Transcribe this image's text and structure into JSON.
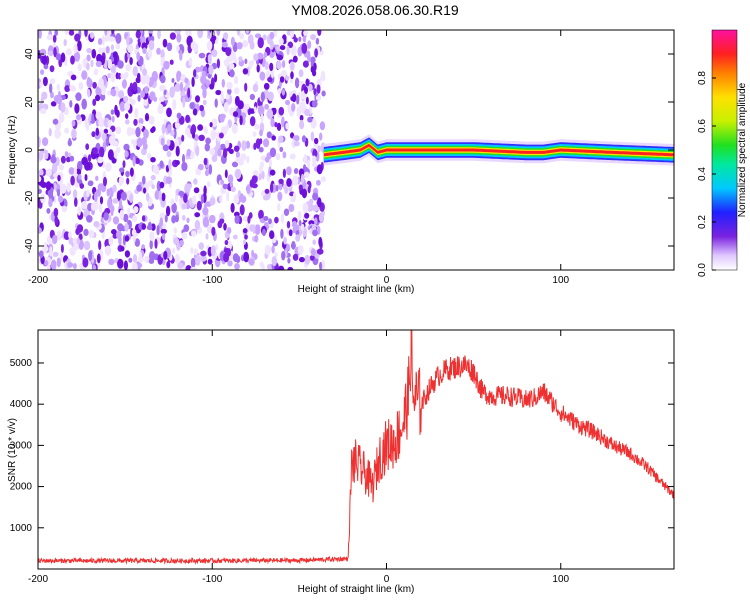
{
  "title": "YM08.2026.058.06.30.R19",
  "colors": {
    "noise": "#7a22e0",
    "snr_line": "#ee3030",
    "frame": "#000000"
  },
  "chart_data": [
    {
      "type": "heatmap",
      "xlabel": "Height of straight line (km)",
      "ylabel": "Frequency (Hz)",
      "xlim": [
        -200,
        165
      ],
      "ylim": [
        -50,
        50
      ],
      "x_ticks": [
        -200,
        -100,
        0,
        100
      ],
      "y_ticks": [
        -40,
        -20,
        0,
        20,
        40
      ],
      "colorbar": {
        "label": "Normalized spectral amplitude",
        "range": [
          0,
          1
        ],
        "ticks": [
          "0.0",
          "0.2",
          "0.4",
          "0.6",
          "0.8"
        ],
        "tick_values": [
          0.0,
          0.2,
          0.4,
          0.6,
          0.8
        ]
      },
      "noise_region": {
        "x_from": -200,
        "x_to": -36
      },
      "signal_band": {
        "x": [
          -36,
          -25,
          -15,
          -10,
          -5,
          0,
          20,
          50,
          80,
          90,
          100,
          130,
          165
        ],
        "center_freq": [
          -2,
          -1,
          0,
          2,
          -1,
          0,
          0,
          0,
          -1,
          -1,
          0,
          -1,
          -2
        ],
        "half_width_hz": 2.5
      }
    },
    {
      "type": "line",
      "xlabel": "Height of straight line (km)",
      "ylabel": "SNR (10 * v/v)",
      "xlim": [
        -200,
        165
      ],
      "ylim": [
        0,
        5800
      ],
      "x_ticks": [
        -200,
        -100,
        0,
        100
      ],
      "y_ticks": [
        1000,
        2000,
        3000,
        4000,
        5000
      ],
      "series": [
        {
          "x": [
            -200,
            -150,
            -100,
            -50,
            -22,
            -20,
            -18,
            -12,
            -8,
            -4,
            0,
            5,
            10,
            13,
            14,
            15,
            20,
            25,
            30,
            35,
            40,
            45,
            50,
            55,
            60,
            70,
            80,
            85,
            90,
            100,
            110,
            120,
            130,
            140,
            150,
            160,
            165
          ],
          "y": [
            200,
            200,
            200,
            210,
            250,
            2500,
            2600,
            2300,
            2000,
            2700,
            3000,
            3100,
            3600,
            4300,
            5800,
            4200,
            4000,
            4400,
            4700,
            4850,
            4900,
            4950,
            4800,
            4300,
            4200,
            4200,
            4100,
            4150,
            4300,
            3800,
            3500,
            3300,
            3000,
            2800,
            2450,
            2000,
            1800
          ]
        }
      ]
    }
  ]
}
